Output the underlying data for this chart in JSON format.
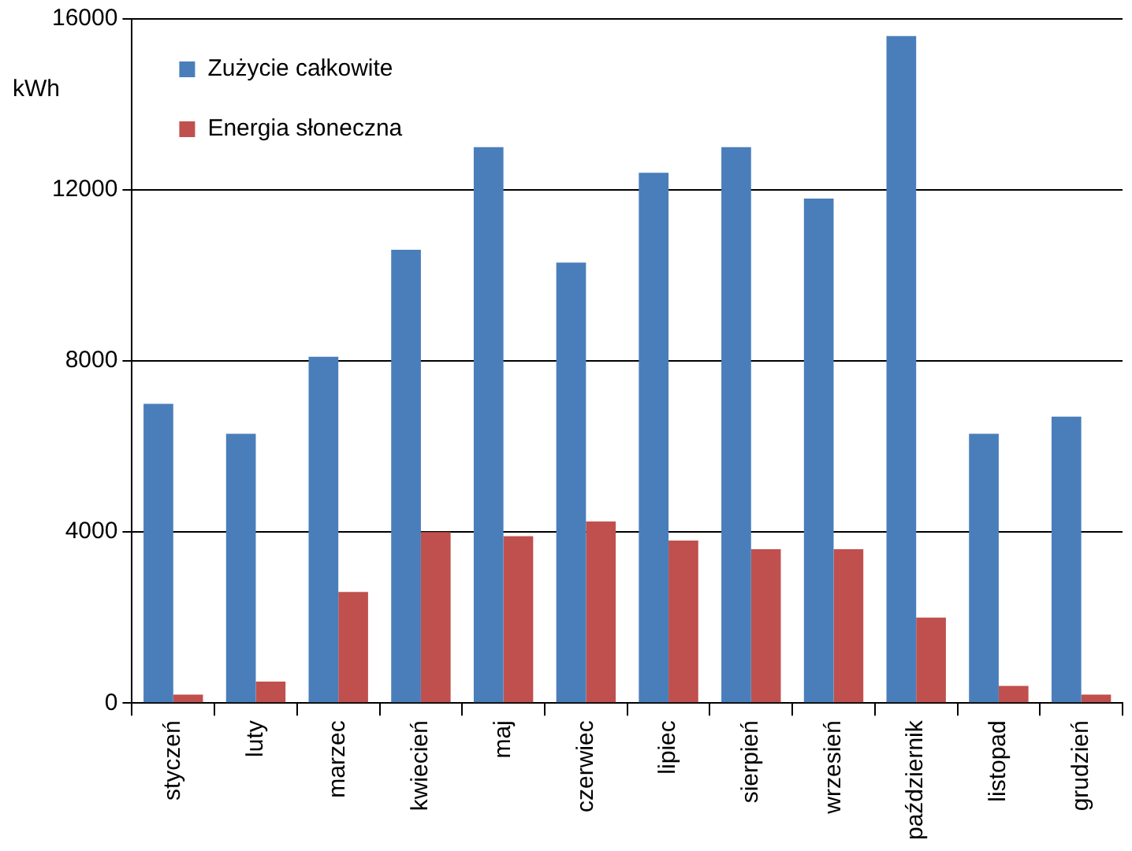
{
  "chart_data": {
    "type": "bar",
    "ylabel": "kWh",
    "categories": [
      "styczeń",
      "luty",
      "marzec",
      "kwiecień",
      "maj",
      "czerwiec",
      "lipiec",
      "sierpień",
      "wrzesień",
      "październik",
      "listopad",
      "grudzień"
    ],
    "series": [
      {
        "name": "Zużycie całkowite",
        "color": "#4a7ebb",
        "values": [
          7000,
          6300,
          8100,
          10600,
          13000,
          10300,
          12400,
          13000,
          11800,
          15600,
          6300,
          6700
        ]
      },
      {
        "name": "Energia słoneczna",
        "color": "#c0504d",
        "values": [
          200,
          500,
          2600,
          4000,
          3900,
          4250,
          3800,
          3600,
          3600,
          2000,
          400,
          200
        ]
      }
    ],
    "ylim": [
      0,
      16000
    ],
    "yticks": [
      0,
      4000,
      8000,
      12000,
      16000
    ],
    "grid": "y",
    "legend": "top left"
  }
}
